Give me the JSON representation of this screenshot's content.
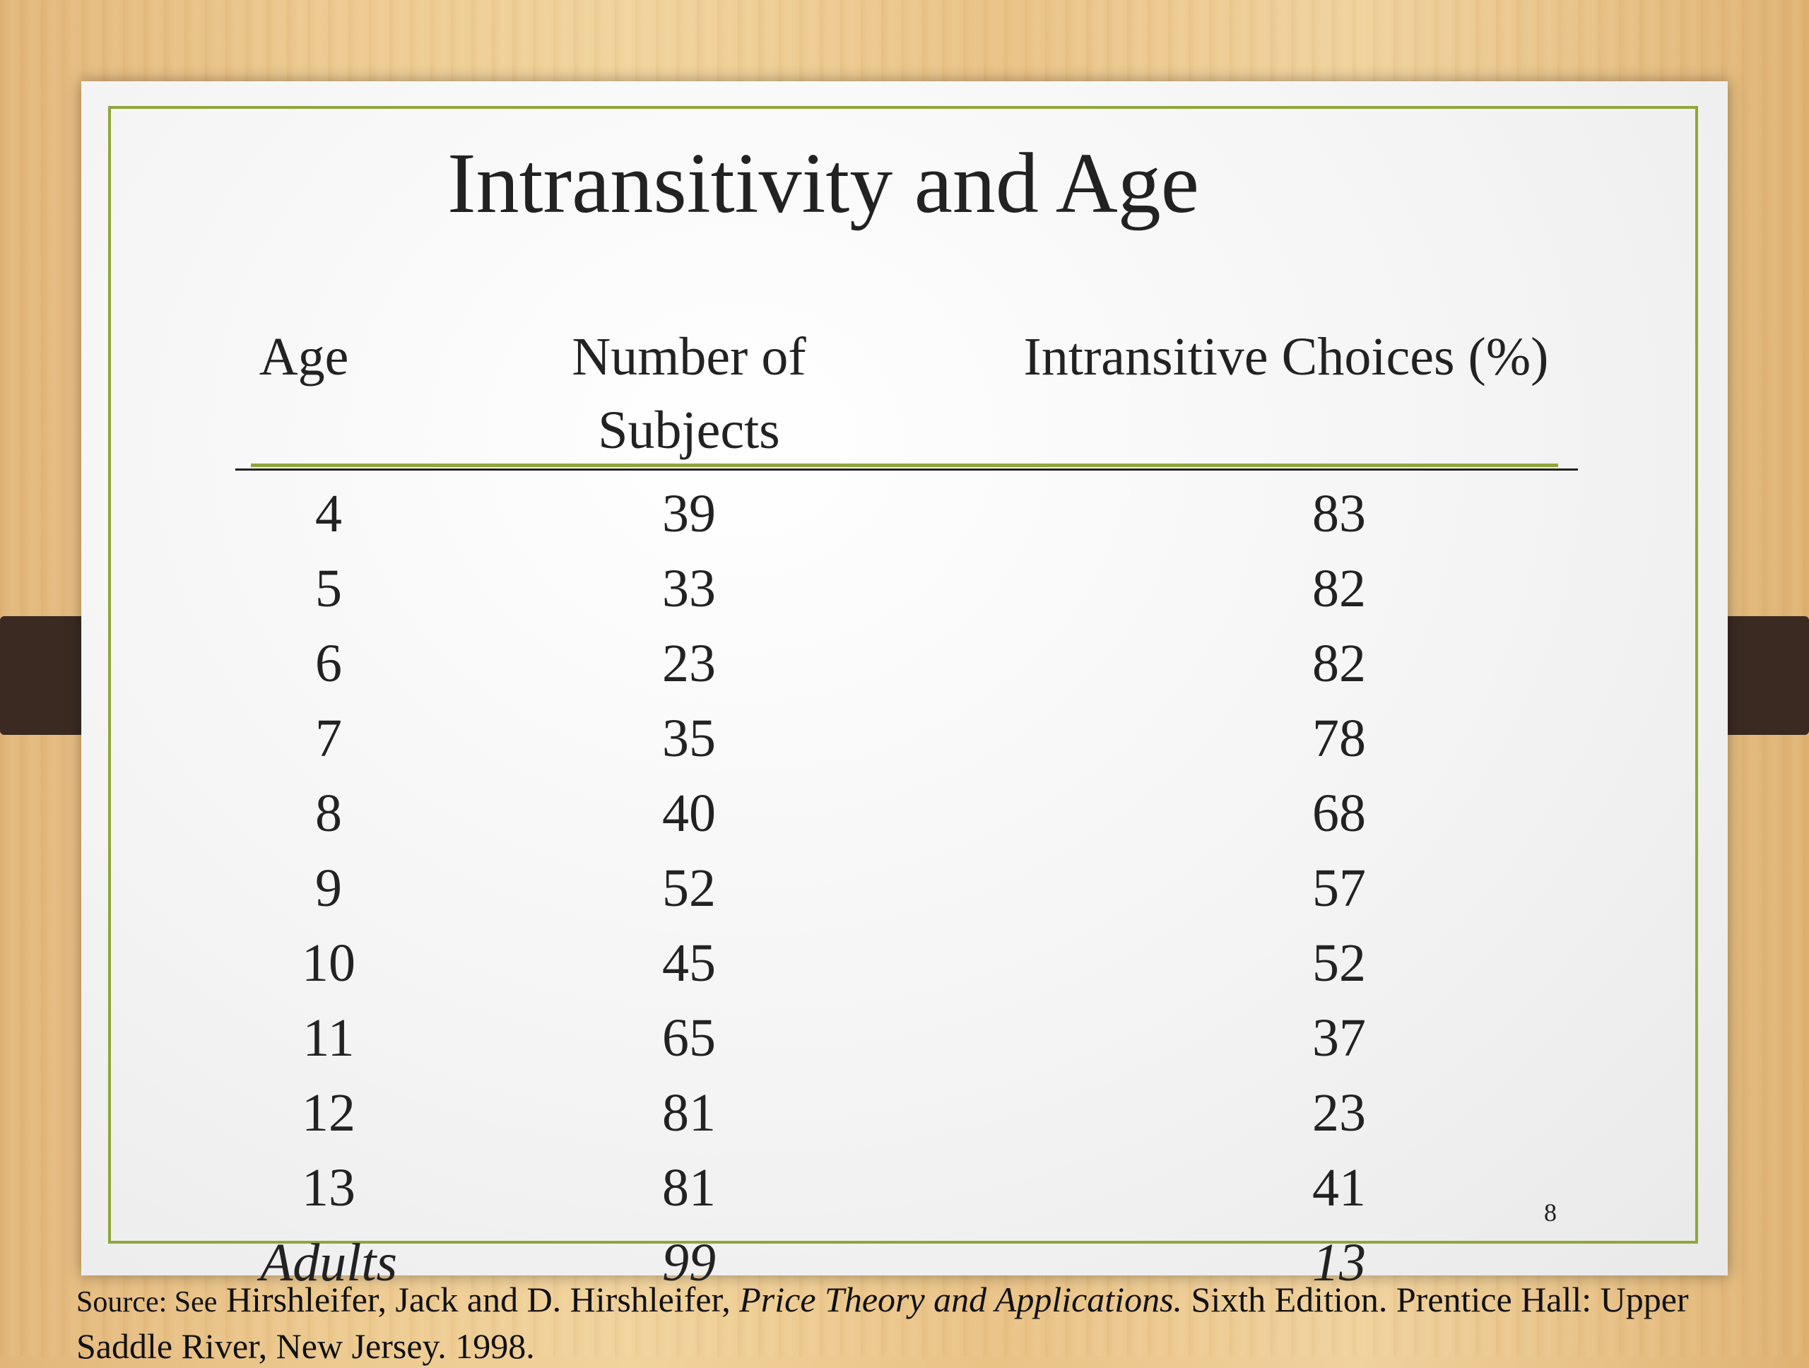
{
  "title": "Intransitivity and Age",
  "table": {
    "headers": [
      "Age",
      "Number of Subjects",
      "Intransitive Choices (%)"
    ],
    "rows": [
      [
        "4",
        "39",
        "83"
      ],
      [
        "5",
        "33",
        "82"
      ],
      [
        "6",
        "23",
        "82"
      ],
      [
        "7",
        "35",
        "78"
      ],
      [
        "8",
        "40",
        "68"
      ],
      [
        "9",
        "52",
        "57"
      ],
      [
        "10",
        "45",
        "52"
      ],
      [
        "11",
        "65",
        "37"
      ],
      [
        "12",
        "81",
        "23"
      ],
      [
        "13",
        "81",
        "41"
      ],
      [
        "Adults",
        "99",
        "13"
      ]
    ]
  },
  "page_number": "8",
  "source": {
    "prefix": "Source:  See",
    "authors": "Hirshleifer, Jack and D. Hirshleifer,",
    "book_title": "Price Theory and Applications.",
    "details": "Sixth Edition.  Prentice Hall: Upper Saddle River, New Jersey.  1998."
  },
  "colors": {
    "accent": "#8fa63a",
    "bracket": "#3a2a22",
    "text": "#222222"
  }
}
